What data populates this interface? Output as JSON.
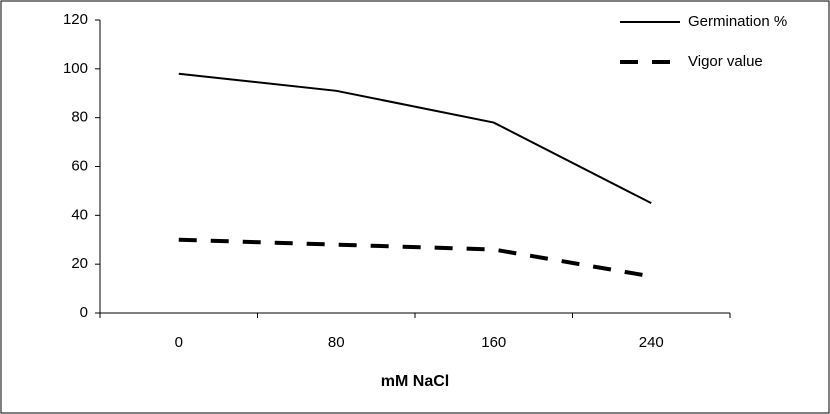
{
  "chart_data": {
    "type": "line",
    "x_label": "mM NaCl",
    "categories": [
      "0",
      "80",
      "160",
      "240"
    ],
    "series": [
      {
        "name": "Germination %",
        "color": "#000000",
        "line_style": "solid",
        "values": [
          98,
          91,
          78,
          45
        ]
      },
      {
        "name": "Vigor value",
        "color": "#000000",
        "line_style": "dashed",
        "values": [
          30,
          28,
          26,
          15
        ]
      }
    ],
    "ylim": [
      0,
      120
    ],
    "yticks": [
      0,
      20,
      40,
      60,
      80,
      100,
      120
    ],
    "grid": false,
    "legend": "top-right"
  }
}
